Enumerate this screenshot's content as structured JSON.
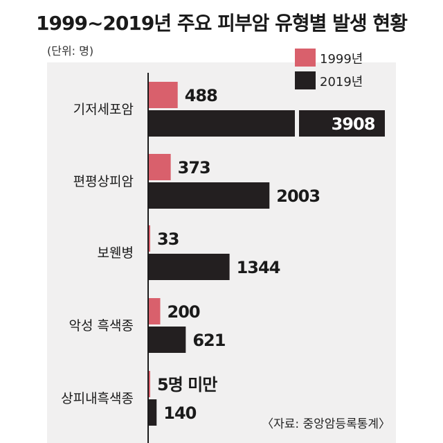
{
  "title": "1999~2019년 주요 피부암 유형별 발생 현황",
  "unit": "(단위: 명)",
  "source": "〈자료: 중앙암등록통계〉",
  "colors": {
    "s1999": "#d9606c",
    "s2019": "#231f20",
    "panel": "#f1f0f0",
    "axis": "#1a1a1a"
  },
  "chart_data": {
    "type": "bar",
    "orientation": "horizontal",
    "categories": [
      "기저세포암",
      "편평상피암",
      "보웬병",
      "악성 흑색종",
      "상피내흑색종"
    ],
    "series": [
      {
        "name": "1999년",
        "values": [
          488,
          373,
          33,
          200,
          5
        ],
        "labels": [
          "488",
          "373",
          "33",
          "200",
          "5명 미만"
        ]
      },
      {
        "name": "2019년",
        "values": [
          3908,
          2003,
          1344,
          621,
          140
        ],
        "labels": [
          "3908",
          "2003",
          "1344",
          "621",
          "140"
        ]
      }
    ],
    "xlim": [
      0,
      4000
    ],
    "legend": "top-right",
    "grid": false
  }
}
